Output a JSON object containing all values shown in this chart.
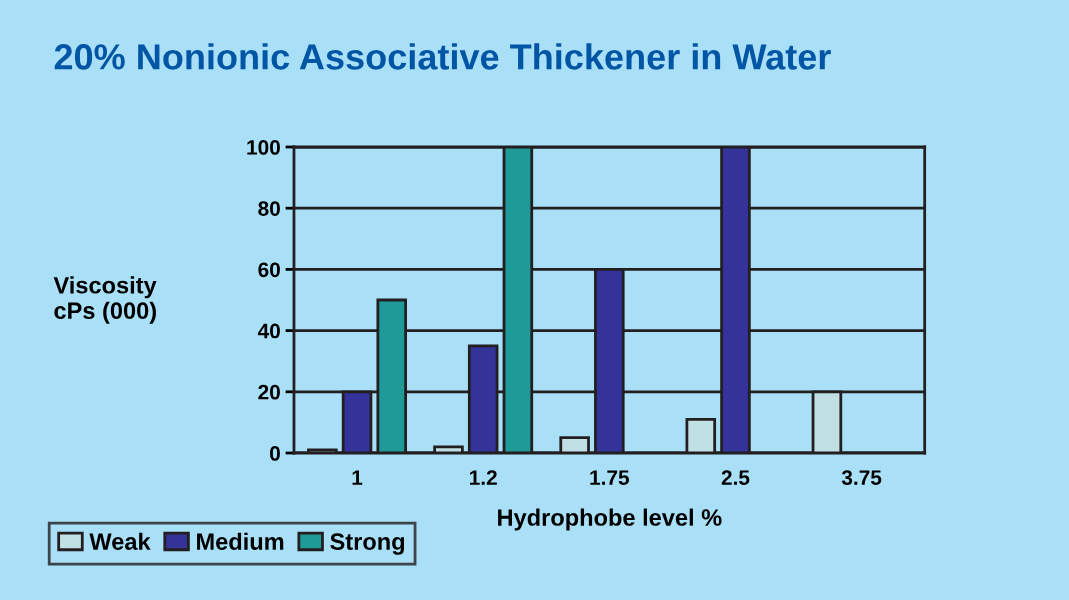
{
  "chart_data": {
    "type": "bar",
    "title": "20% Nonionic Associative Thickener in Water",
    "xlabel": "Hydrophobe level %",
    "ylabel": "Viscosity\ncPs (000)",
    "categories": [
      "1",
      "1.2",
      "1.75",
      "2.5",
      "3.75"
    ],
    "series": [
      {
        "name": "Weak",
        "color": "#c0e0e4",
        "values": [
          1,
          2,
          5,
          11,
          20
        ]
      },
      {
        "name": "Medium",
        "color": "#333399",
        "values": [
          20,
          35,
          60,
          100,
          null
        ]
      },
      {
        "name": "Strong",
        "color": "#1e9a98",
        "values": [
          50,
          100,
          null,
          null,
          null
        ]
      }
    ],
    "ylim": [
      0,
      100
    ],
    "yticks": [
      0,
      20,
      40,
      60,
      80,
      100
    ],
    "grid": "y",
    "legend": "bottom left"
  }
}
